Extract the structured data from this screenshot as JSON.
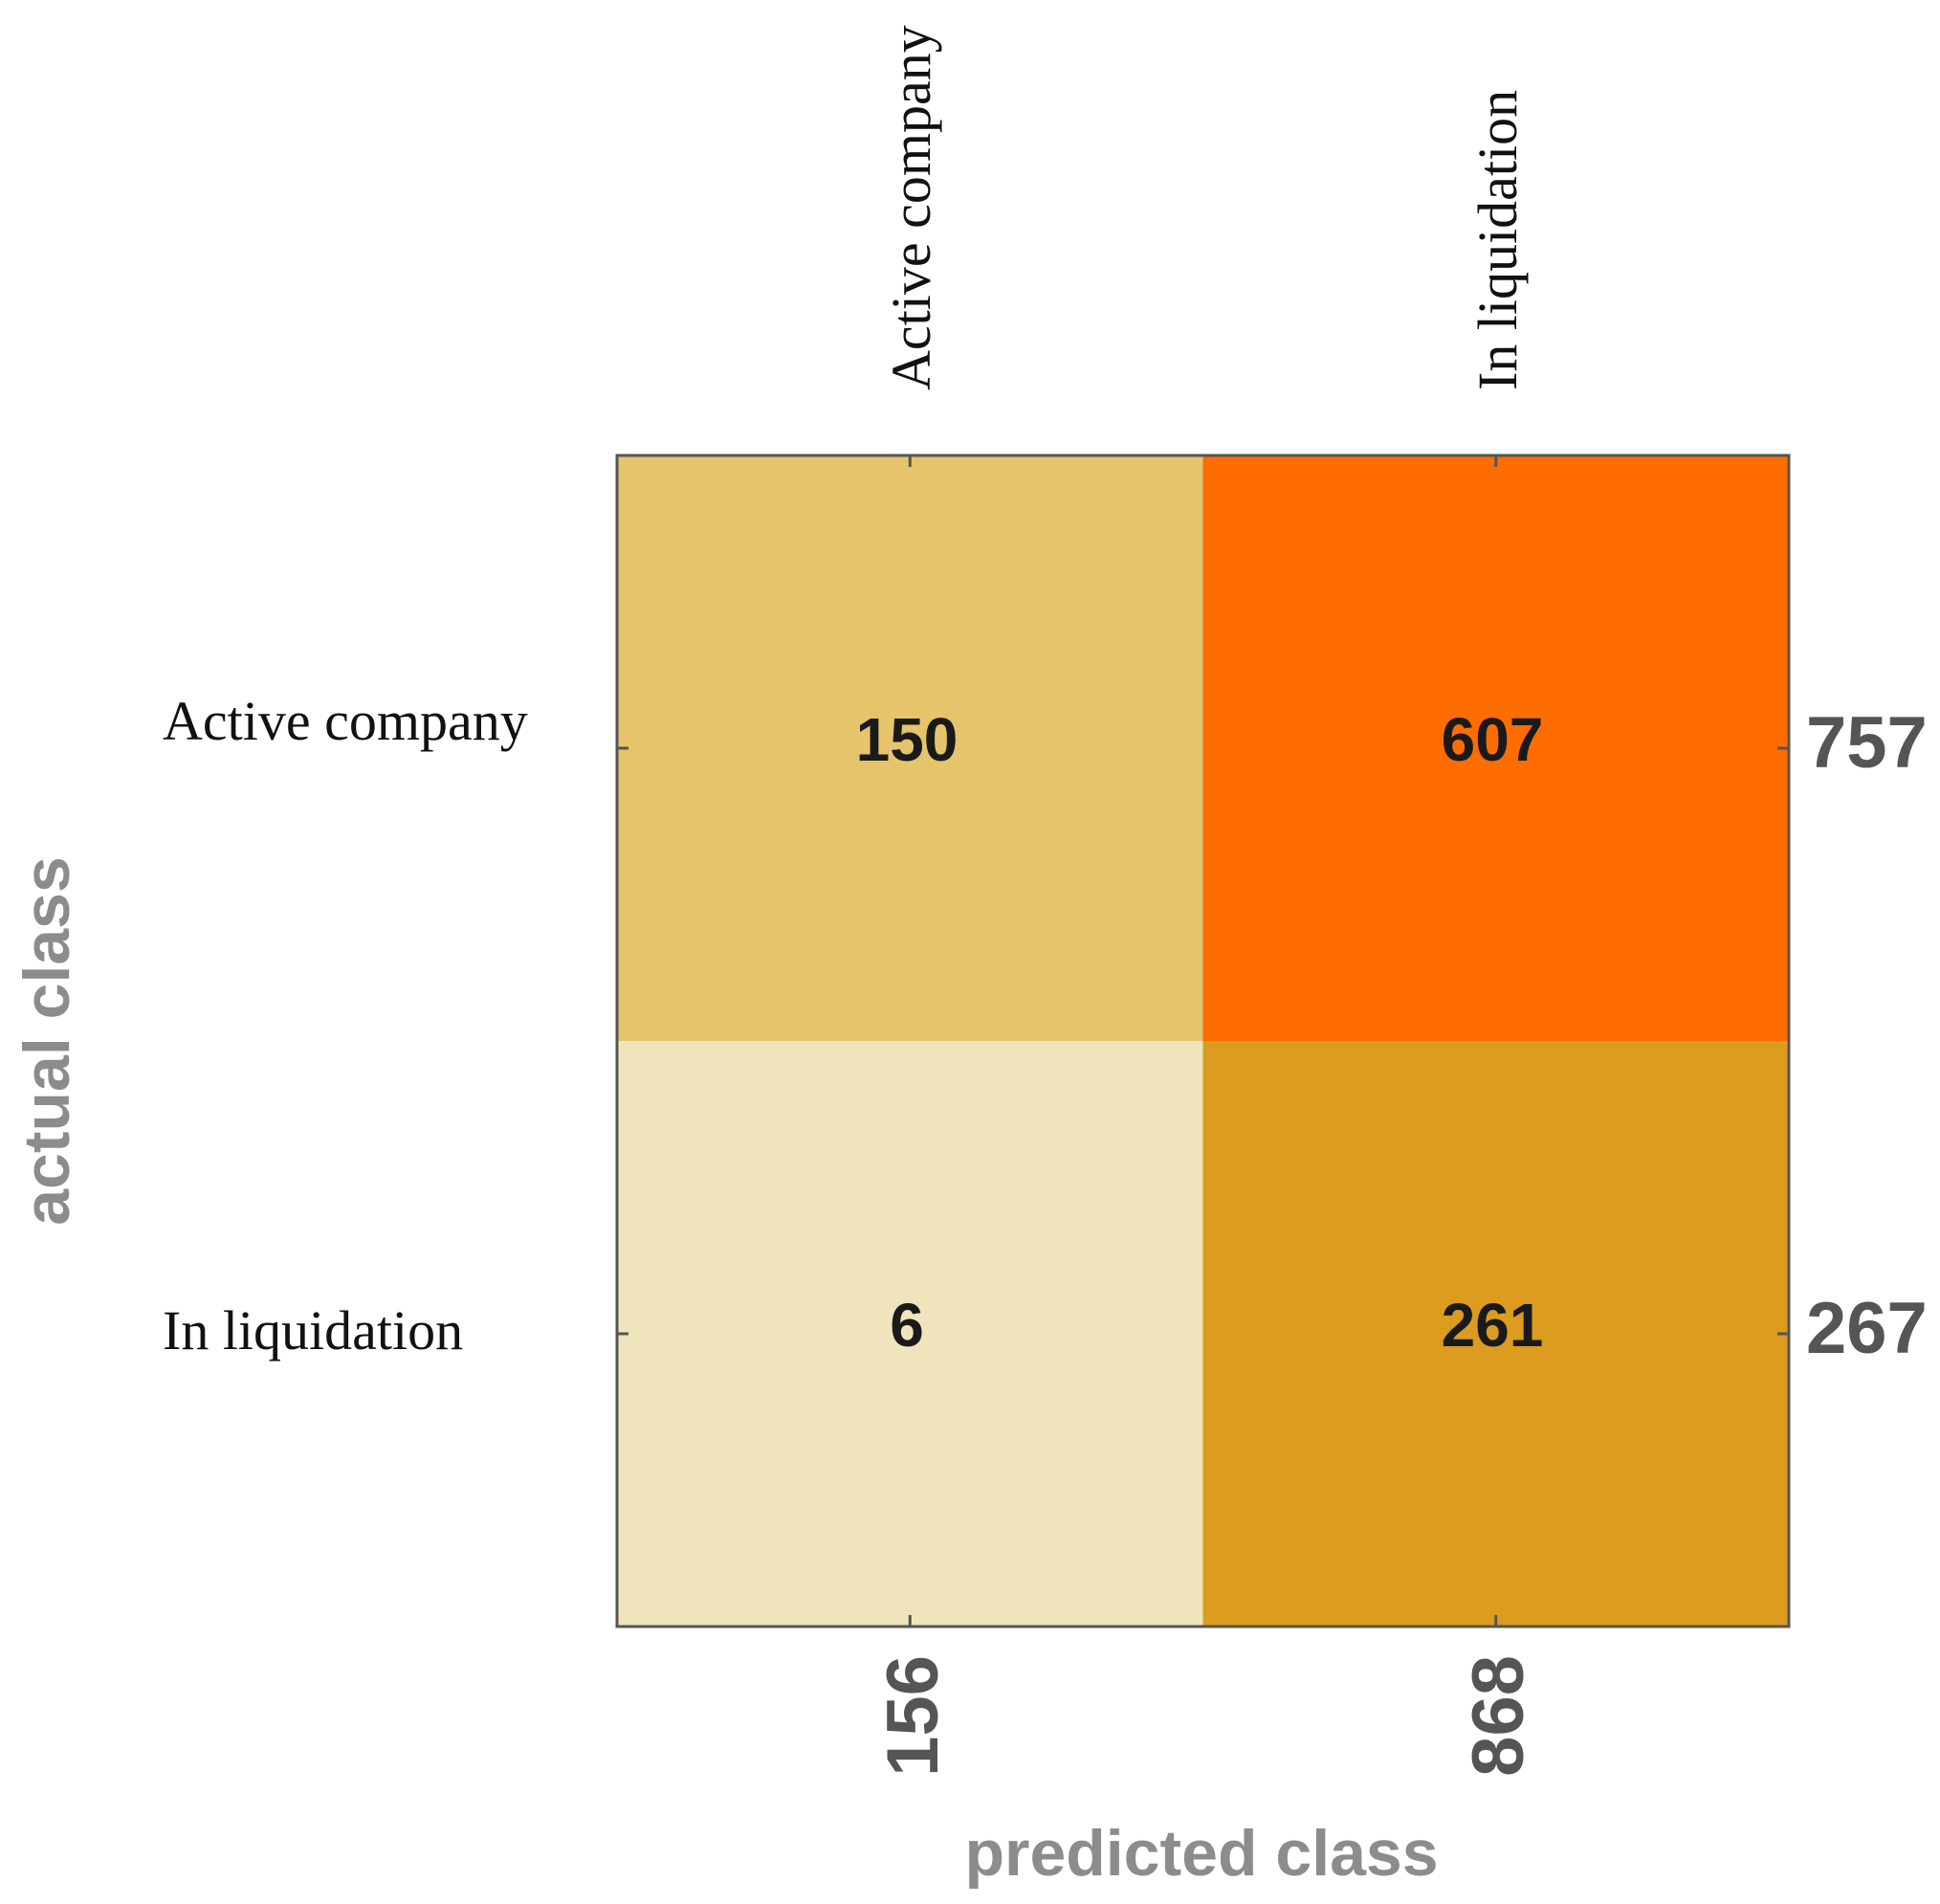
{
  "chart_data": {
    "type": "heatmap",
    "title": "",
    "xlabel": "predicted class",
    "ylabel": "actual class",
    "column_labels": [
      "Active company",
      "In liquidation"
    ],
    "row_labels": [
      "Active company",
      "In liquidation"
    ],
    "values": [
      [
        150,
        607
      ],
      [
        6,
        261
      ]
    ],
    "row_totals": [
      "757",
      "267"
    ],
    "column_totals": [
      "156",
      "868"
    ],
    "colors": {
      "low": "#f0e4bd",
      "mid_low": "#e6c46c",
      "mid_high": "#db9c20",
      "high": "#ff6d00",
      "frame": "#555555"
    }
  }
}
